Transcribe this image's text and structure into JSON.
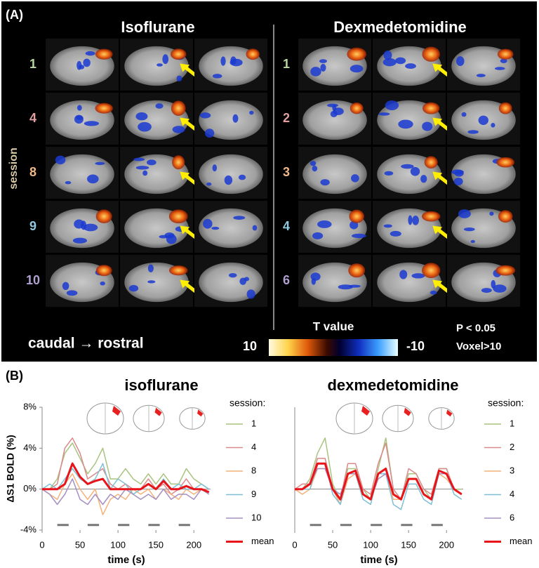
{
  "panel_a": {
    "label": "(A)",
    "left_title": "Isoflurane",
    "right_title": "Dexmedetomidine",
    "row_axis_label": "session",
    "left_sessions": [
      "1",
      "4",
      "8",
      "9",
      "10"
    ],
    "right_sessions": [
      "1",
      "2",
      "3",
      "4",
      "6"
    ],
    "direction": "caudal → rostral",
    "colorbar_title": "T value",
    "colorbar_max": "10",
    "colorbar_min": "-10",
    "threshold": [
      "P < 0.05",
      "Voxel>10"
    ]
  },
  "panel_b_label": "(B)",
  "chart_data": [
    {
      "type": "line",
      "title": "isoflurane",
      "xlabel": "time (s)",
      "ylabel": "ΔS1 BOLD (%)",
      "legend_title": "session:",
      "x": [
        0,
        10,
        20,
        30,
        40,
        50,
        60,
        70,
        80,
        90,
        100,
        110,
        120,
        130,
        140,
        150,
        160,
        170,
        180,
        190,
        200,
        210,
        220
      ],
      "xlim": [
        0,
        222
      ],
      "xticks": [
        0,
        50,
        100,
        150,
        200
      ],
      "ylim": [
        -4,
        8
      ],
      "yticks": [
        {
          "value": -4,
          "label": "-4%"
        },
        {
          "value": 0,
          "label": "0%"
        },
        {
          "value": 4,
          "label": "4%"
        },
        {
          "value": 8,
          "label": "8%"
        }
      ],
      "stimulus_blocks": [
        [
          20,
          35
        ],
        [
          60,
          75
        ],
        [
          100,
          115
        ],
        [
          140,
          155
        ],
        [
          180,
          195
        ]
      ],
      "series": [
        {
          "name": "1",
          "color": "#a9c47f",
          "values": [
            0,
            0,
            1,
            3.5,
            4.5,
            3,
            1.5,
            2.5,
            4,
            1,
            1,
            2,
            1,
            0.5,
            1.5,
            0.5,
            1.5,
            0.5,
            0.5,
            2,
            1,
            0.5,
            0
          ]
        },
        {
          "name": "4",
          "color": "#d98a8c",
          "values": [
            0,
            0,
            0.5,
            4,
            5,
            3.5,
            1,
            1.5,
            2,
            0.5,
            0,
            0.5,
            0,
            0,
            1,
            0,
            0.5,
            -0.5,
            0,
            1,
            0,
            0,
            0
          ]
        },
        {
          "name": "8",
          "color": "#f5b27a",
          "values": [
            0,
            -0.5,
            -1,
            0.5,
            1.5,
            0,
            -1,
            0,
            -2.5,
            -1,
            -0.5,
            -1,
            0,
            -0.5,
            0,
            -1,
            0,
            -0.5,
            -1,
            0,
            -0.5,
            0,
            -0.5
          ]
        },
        {
          "name": "9",
          "color": "#7fbfd6",
          "values": [
            0,
            0.5,
            0,
            1,
            2,
            1,
            0.5,
            1,
            2.5,
            0,
            1,
            0.5,
            -0.5,
            0,
            0.5,
            0,
            1,
            0,
            0.5,
            0,
            0,
            0.5,
            0
          ]
        },
        {
          "name": "10",
          "color": "#a590c2",
          "values": [
            0,
            -0.5,
            -1.5,
            -0.5,
            1,
            -1,
            -1.5,
            -0.5,
            -1.5,
            -0.5,
            -1,
            0,
            -0.5,
            -1,
            -0.5,
            -1,
            0,
            -1,
            -0.5,
            -0.5,
            -1,
            0,
            -0.5
          ]
        },
        {
          "name": "mean",
          "color": "#e8141a",
          "values": [
            0,
            0,
            0,
            0.5,
            2.5,
            1.2,
            0.5,
            0.8,
            1,
            0,
            0,
            0,
            0,
            0,
            0.5,
            0,
            0.8,
            0,
            0,
            0.3,
            0,
            0,
            -0.3
          ]
        }
      ]
    },
    {
      "type": "line",
      "title": "dexmedetomidine",
      "xlabel": "time (s)",
      "legend_title": "session:",
      "x": [
        0,
        10,
        20,
        30,
        40,
        50,
        60,
        70,
        80,
        90,
        100,
        110,
        120,
        130,
        140,
        150,
        160,
        170,
        180,
        190,
        200,
        210,
        220
      ],
      "xlim": [
        0,
        222
      ],
      "xticks": [
        0,
        50,
        100,
        150,
        200
      ],
      "ylim": [
        -4,
        8
      ],
      "stimulus_blocks": [
        [
          20,
          35
        ],
        [
          60,
          75
        ],
        [
          100,
          115
        ],
        [
          140,
          155
        ],
        [
          180,
          195
        ]
      ],
      "series": [
        {
          "name": "1",
          "color": "#a9c47f",
          "values": [
            0,
            0,
            1,
            3.5,
            5,
            0.5,
            -1,
            2,
            2,
            0,
            -1,
            2,
            5,
            0,
            -1,
            1.5,
            1.5,
            0,
            -1,
            2,
            2,
            0,
            0
          ]
        },
        {
          "name": "2",
          "color": "#d98a8c",
          "values": [
            0,
            0.5,
            0.5,
            3,
            3,
            0,
            -1,
            2.5,
            2.5,
            0,
            -0.5,
            2.5,
            4.5,
            0,
            -1,
            2,
            1.5,
            0,
            -0.5,
            2,
            2,
            0,
            -0.5
          ]
        },
        {
          "name": "3",
          "color": "#f5b27a",
          "values": [
            0,
            -0.5,
            0,
            2,
            2,
            0,
            -1.5,
            1,
            1.5,
            -0.5,
            -1,
            1,
            1.5,
            -1,
            -1,
            1,
            1,
            -0.5,
            -1,
            1.5,
            1,
            0,
            -0.5
          ]
        },
        {
          "name": "4",
          "color": "#7fbfd6",
          "values": [
            0,
            0,
            0,
            2.5,
            2.5,
            -0.5,
            -1.5,
            1.5,
            1.5,
            -1,
            -1.5,
            1.5,
            1.5,
            -1.5,
            -2,
            0.5,
            0.5,
            -1,
            -1.5,
            1.5,
            1.5,
            -0.5,
            -1
          ]
        },
        {
          "name": "6",
          "color": "#a590c2",
          "values": [
            0,
            0,
            0.5,
            2,
            2,
            0,
            -0.5,
            1.5,
            1.5,
            -0.5,
            -1,
            1,
            1.5,
            -0.5,
            -1,
            1,
            1,
            -0.5,
            -1,
            1.5,
            1.5,
            0,
            -0.5
          ]
        },
        {
          "name": "mean",
          "color": "#e8141a",
          "values": [
            0,
            0,
            0.5,
            2.5,
            2.5,
            0,
            -1,
            1.5,
            1.8,
            -0.5,
            -1,
            1.5,
            2,
            -0.5,
            -1,
            1,
            1,
            -0.5,
            -1,
            1.8,
            1.5,
            0,
            -0.5
          ]
        }
      ]
    }
  ]
}
